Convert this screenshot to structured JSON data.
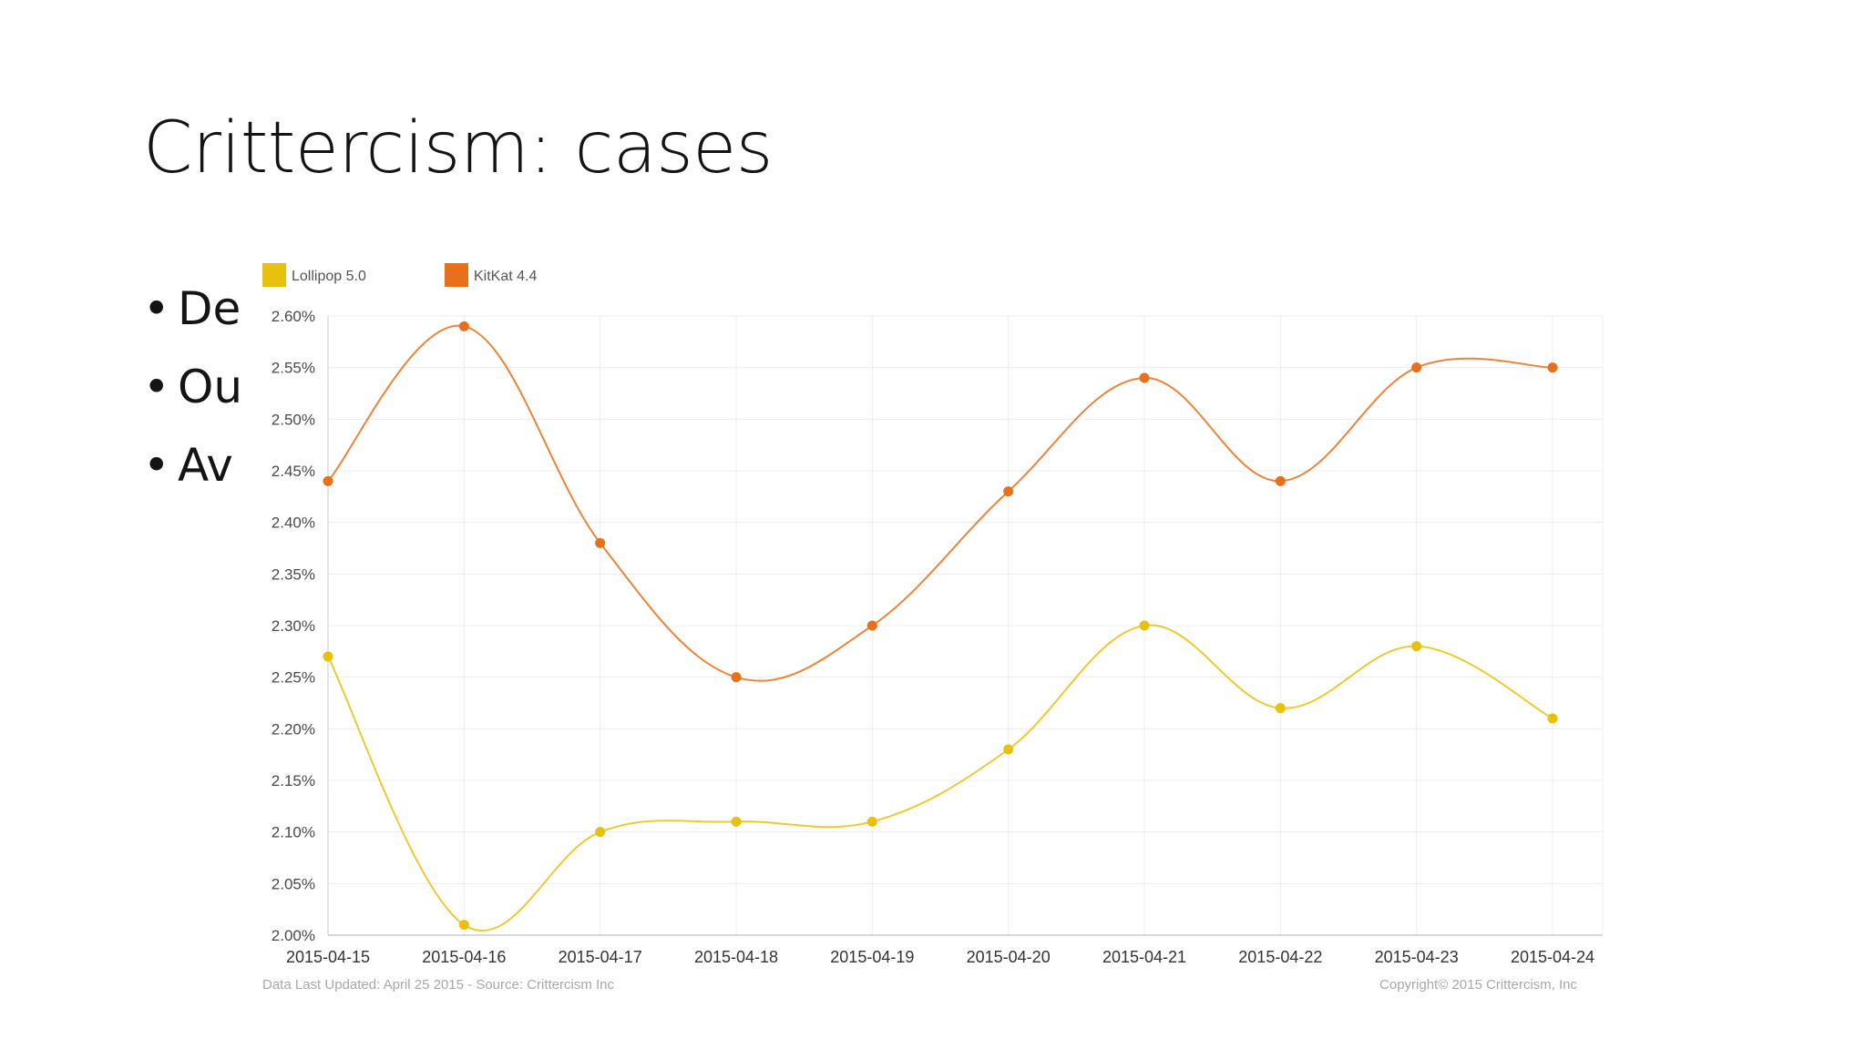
{
  "slide": {
    "title": "Crittercism: cases",
    "bullets": [
      {
        "marker": "•",
        "text": "De"
      },
      {
        "marker": "•",
        "text": "Ou"
      },
      {
        "marker": "•",
        "text": "Av"
      }
    ]
  },
  "chart_data": {
    "type": "line",
    "title": "",
    "xlabel": "",
    "ylabel": "",
    "x": [
      "2015-04-15",
      "2015-04-16",
      "2015-04-17",
      "2015-04-18",
      "2015-04-19",
      "2015-04-20",
      "2015-04-21",
      "2015-04-22",
      "2015-04-23",
      "2015-04-24"
    ],
    "ylim": [
      2.0,
      2.6
    ],
    "yticks": [
      2.0,
      2.05,
      2.1,
      2.15,
      2.2,
      2.25,
      2.3,
      2.35,
      2.4,
      2.45,
      2.5,
      2.55,
      2.6
    ],
    "ytick_labels": [
      "2.00%",
      "2.05%",
      "2.10%",
      "2.15%",
      "2.20%",
      "2.25%",
      "2.30%",
      "2.35%",
      "2.40%",
      "2.45%",
      "2.50%",
      "2.55%",
      "2.60%"
    ],
    "y_unit": "%",
    "grid": true,
    "legend_position": "top-left",
    "series": [
      {
        "name": "Lollipop 5.0",
        "color": "#e8c10e",
        "values": [
          2.27,
          2.01,
          2.1,
          2.11,
          2.11,
          2.18,
          2.3,
          2.22,
          2.28,
          2.21
        ]
      },
      {
        "name": "KitKat 4.4",
        "color": "#e8701a",
        "values": [
          2.44,
          2.59,
          2.38,
          2.25,
          2.3,
          2.43,
          2.54,
          2.44,
          2.55,
          2.55
        ]
      }
    ],
    "footer_left": "Data Last Updated: April 25 2015 - Source: Crittercism Inc",
    "footer_right": "Copyright© 2015 Crittercism, Inc"
  }
}
